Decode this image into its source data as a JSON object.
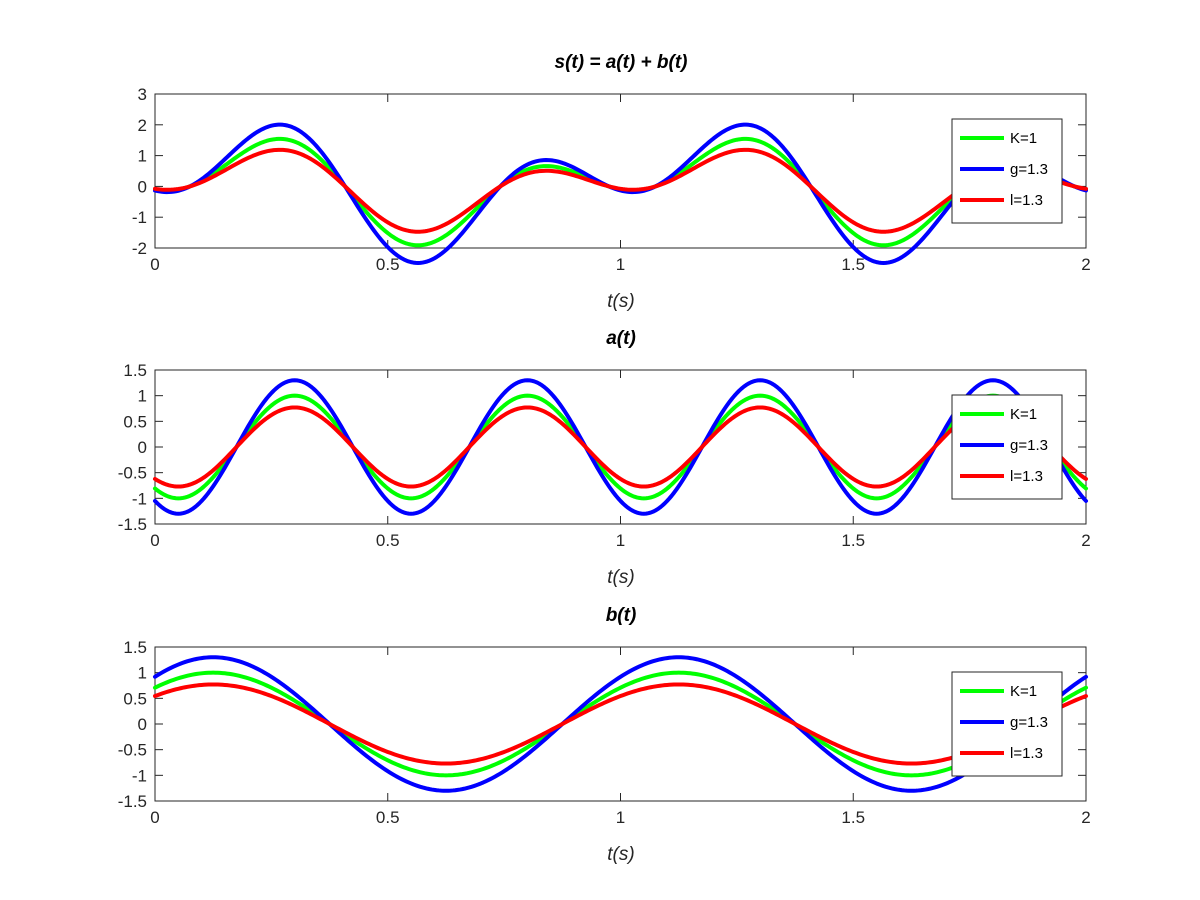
{
  "chart_data": [
    {
      "type": "line",
      "title": "s(t) = a(t) + b(t)",
      "xlabel": "t(s)",
      "ylabel": "",
      "xlim": [
        0,
        2
      ],
      "ylim": [
        -2,
        3
      ],
      "xticks": [
        0,
        0.5,
        1,
        1.5,
        2
      ],
      "xtick_labels": [
        "0",
        "0.5",
        "1",
        "1.5",
        "2"
      ],
      "yticks": [
        -2,
        -1,
        0,
        1,
        2,
        3
      ],
      "ytick_labels": [
        "-2",
        "-1",
        "0",
        "1",
        "2",
        "3"
      ],
      "legend_location": "right",
      "series": [
        {
          "name": "K=1",
          "color": "#00ff00",
          "amplitude": 1,
          "components": [
            {
              "freq": 2,
              "phase": -2.2
            },
            {
              "freq": 1,
              "phase": 0.7854
            }
          ]
        },
        {
          "name": "g=1.3",
          "color": "#0000ff",
          "amplitude": 1.3,
          "components": [
            {
              "freq": 2,
              "phase": -2.2
            },
            {
              "freq": 1,
              "phase": 0.7854
            }
          ]
        },
        {
          "name": "l=1.3",
          "color": "#ff0000",
          "amplitude": 0.77,
          "components": [
            {
              "freq": 2,
              "phase": -2.2
            },
            {
              "freq": 1,
              "phase": 0.7854
            }
          ]
        }
      ]
    },
    {
      "type": "line",
      "title": "a(t)",
      "xlabel": "t(s)",
      "ylabel": "",
      "xlim": [
        0,
        2
      ],
      "ylim": [
        -1.5,
        1.5
      ],
      "xticks": [
        0,
        0.5,
        1,
        1.5,
        2
      ],
      "xtick_labels": [
        "0",
        "0.5",
        "1",
        "1.5",
        "2"
      ],
      "yticks": [
        -1.5,
        -1,
        -0.5,
        0,
        0.5,
        1,
        1.5
      ],
      "ytick_labels": [
        "-1.5",
        "-1",
        "-0.5",
        "0",
        "0.5",
        "1",
        "1.5"
      ],
      "legend_location": "right",
      "series": [
        {
          "name": "K=1",
          "color": "#00ff00",
          "amplitude": 1,
          "components": [
            {
              "freq": 2,
              "phase": -2.2
            }
          ]
        },
        {
          "name": "g=1.3",
          "color": "#0000ff",
          "amplitude": 1.3,
          "components": [
            {
              "freq": 2,
              "phase": -2.2
            }
          ]
        },
        {
          "name": "l=1.3",
          "color": "#ff0000",
          "amplitude": 0.77,
          "components": [
            {
              "freq": 2,
              "phase": -2.2
            }
          ]
        }
      ]
    },
    {
      "type": "line",
      "title": "b(t)",
      "xlabel": "t(s)",
      "ylabel": "",
      "xlim": [
        0,
        2
      ],
      "ylim": [
        -1.5,
        1.5
      ],
      "xticks": [
        0,
        0.5,
        1,
        1.5,
        2
      ],
      "xtick_labels": [
        "0",
        "0.5",
        "1",
        "1.5",
        "2"
      ],
      "yticks": [
        -1.5,
        -1,
        -0.5,
        0,
        0.5,
        1,
        1.5
      ],
      "ytick_labels": [
        "-1.5",
        "-1",
        "-0.5",
        "0",
        "0.5",
        "1",
        "1.5"
      ],
      "legend_location": "right",
      "series": [
        {
          "name": "K=1",
          "color": "#00ff00",
          "amplitude": 1,
          "components": [
            {
              "freq": 1,
              "phase": 0.7854
            }
          ]
        },
        {
          "name": "g=1.3",
          "color": "#0000ff",
          "amplitude": 1.3,
          "components": [
            {
              "freq": 1,
              "phase": 0.7854
            }
          ]
        },
        {
          "name": "l=1.3",
          "color": "#ff0000",
          "amplitude": 0.77,
          "components": [
            {
              "freq": 1,
              "phase": 0.7854
            }
          ]
        }
      ]
    }
  ]
}
